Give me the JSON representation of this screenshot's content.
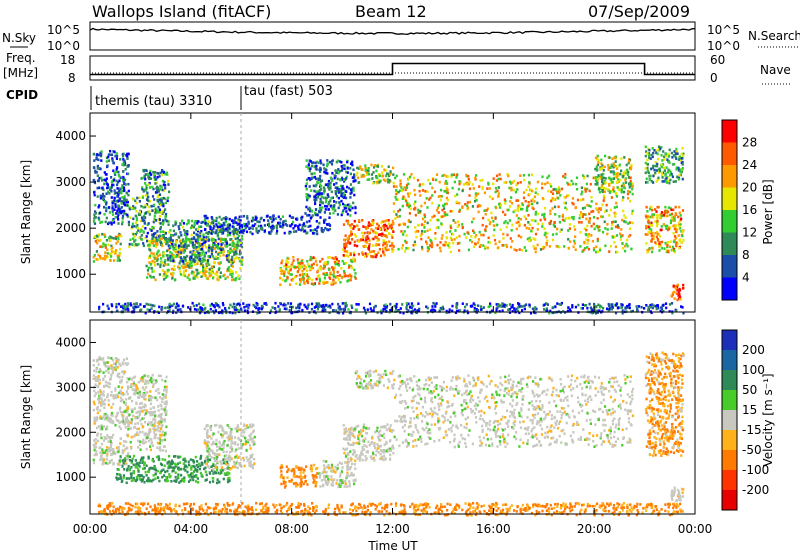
{
  "header": {
    "site": "Wallops Island (fitACF)",
    "beam": "Beam 12",
    "date": "07/Sep/2009"
  },
  "panel_labels": {
    "nsky": "N.Sky",
    "nsearch": "N.Search",
    "freq_line1": "Freq.",
    "freq_line2": "[MHz]",
    "nave": "Nave",
    "cpid": "CPID"
  },
  "cpid_segments": [
    "themis (tau) 3310",
    "tau (fast) 503"
  ],
  "colors": {
    "power": [
      "#0000ff",
      "#1a4ea8",
      "#2e8b57",
      "#32cd32",
      "#e6e600",
      "#ff9900",
      "#ff5a00",
      "#ff0000"
    ],
    "velocity": [
      "#1c2fb8",
      "#1a66a3",
      "#2e8b57",
      "#48cc2a",
      "#c8c8c0",
      "#ffb21a",
      "#ff7a00",
      "#ff3300",
      "#e60000"
    ]
  },
  "chart_data": [
    {
      "type": "line",
      "name": "noise-panel",
      "ylabel_left": "N.Sky",
      "ylabel_right": "N.Search",
      "yticks_left": [
        "10^5",
        "10^0"
      ],
      "yticks_right": [
        "10^5",
        "10^0"
      ],
      "xlim": [
        0,
        24
      ]
    },
    {
      "type": "line",
      "name": "frequency-panel",
      "ylabel_left": "Freq. [MHz]",
      "ylabel_right": "Nave",
      "yticks_left": [
        18,
        8
      ],
      "yticks_right": [
        60,
        0
      ],
      "ylim_left": [
        8,
        18
      ],
      "ylim_right": [
        0,
        60
      ],
      "freq_mhz": [
        {
          "start": 0.0,
          "end": 12.0,
          "value": 10.5
        },
        {
          "start": 12.0,
          "end": 22.0,
          "value": 15.5
        },
        {
          "start": 22.0,
          "end": 24.0,
          "value": 10.5
        }
      ]
    },
    {
      "type": "heatmap",
      "name": "power-panel",
      "ylabel": "Slant Range [km]",
      "ylim": [
        180,
        4500
      ],
      "yticks": [
        1000,
        2000,
        3000,
        4000
      ],
      "xlim": [
        0,
        24
      ],
      "colorbar": {
        "label": "Power [dB]",
        "ticks": [
          4,
          8,
          12,
          16,
          20,
          24,
          28
        ]
      },
      "features": [
        {
          "t0": 0.1,
          "t1": 1.2,
          "r0": 1300,
          "r1": 1900,
          "level": 0.55
        },
        {
          "t0": 0.1,
          "t1": 1.5,
          "r0": 2100,
          "r1": 3700,
          "level": 0.2
        },
        {
          "t0": 1.5,
          "t1": 3.0,
          "r0": 1600,
          "r1": 2700,
          "level": 0.35
        },
        {
          "t0": 2.0,
          "t1": 3.1,
          "r0": 2600,
          "r1": 3300,
          "level": 0.3
        },
        {
          "t0": 2.2,
          "t1": 6.0,
          "r0": 900,
          "r1": 1800,
          "level": 0.5
        },
        {
          "t0": 3.0,
          "t1": 6.0,
          "r0": 1300,
          "r1": 2200,
          "level": 0.3
        },
        {
          "t0": 4.5,
          "t1": 9.5,
          "r0": 1900,
          "r1": 2300,
          "level": 0.15
        },
        {
          "t0": 7.5,
          "t1": 10.5,
          "r0": 800,
          "r1": 1400,
          "level": 0.65
        },
        {
          "t0": 8.5,
          "t1": 10.5,
          "r0": 2300,
          "r1": 3500,
          "level": 0.25
        },
        {
          "t0": 10.0,
          "t1": 12.0,
          "r0": 1400,
          "r1": 2200,
          "level": 0.75
        },
        {
          "t0": 10.5,
          "t1": 12.0,
          "r0": 3000,
          "r1": 3400,
          "level": 0.5
        },
        {
          "t0": 12.0,
          "t1": 21.5,
          "r0": 1500,
          "r1": 3200,
          "level": 0.6
        },
        {
          "t0": 20.0,
          "t1": 21.5,
          "r0": 2800,
          "r1": 3600,
          "level": 0.5
        },
        {
          "t0": 22.0,
          "t1": 23.5,
          "r0": 1500,
          "r1": 2500,
          "level": 0.65
        },
        {
          "t0": 22.0,
          "t1": 23.5,
          "r0": 3000,
          "r1": 3800,
          "level": 0.35
        },
        {
          "t0": 23.0,
          "t1": 23.5,
          "r0": 450,
          "r1": 800,
          "level": 0.9
        },
        {
          "t0": 0.3,
          "t1": 23.5,
          "r0": 180,
          "r1": 400,
          "level": 0.15
        }
      ]
    },
    {
      "type": "heatmap",
      "name": "velocity-panel",
      "ylabel": "Slant Range [km]",
      "ylim": [
        180,
        4500
      ],
      "yticks": [
        1000,
        2000,
        3000,
        4000
      ],
      "xlim": [
        0,
        24
      ],
      "xticks": [
        "00:00",
        "04:00",
        "08:00",
        "12:00",
        "16:00",
        "20:00",
        "00:00"
      ],
      "xlabel": "Time UT",
      "colorbar": {
        "label": "Velocity [m s⁻¹]",
        "ticks": [
          200,
          100,
          50,
          15,
          -15,
          -50,
          -100,
          -200
        ]
      },
      "features": [
        {
          "t0": 0.1,
          "t1": 1.5,
          "r0": 1300,
          "r1": 2000,
          "vel": 0
        },
        {
          "t0": 0.1,
          "t1": 1.5,
          "r0": 2100,
          "r1": 3700,
          "vel": 0
        },
        {
          "t0": 1.5,
          "t1": 3.0,
          "r0": 1600,
          "r1": 3300,
          "vel": 0
        },
        {
          "t0": 1.0,
          "t1": 5.5,
          "r0": 900,
          "r1": 1500,
          "vel": 40
        },
        {
          "t0": 4.5,
          "t1": 6.5,
          "r0": 1200,
          "r1": 2200,
          "vel": 0
        },
        {
          "t0": 7.5,
          "t1": 9.0,
          "r0": 800,
          "r1": 1300,
          "vel": -40
        },
        {
          "t0": 9.0,
          "t1": 10.5,
          "r0": 800,
          "r1": 1400,
          "vel": 0
        },
        {
          "t0": 10.0,
          "t1": 12.0,
          "r0": 1400,
          "r1": 2200,
          "vel": 0
        },
        {
          "t0": 10.5,
          "t1": 12.0,
          "r0": 3000,
          "r1": 3400,
          "vel": 0
        },
        {
          "t0": 12.0,
          "t1": 21.5,
          "r0": 1700,
          "r1": 3300,
          "vel": 0
        },
        {
          "t0": 22.0,
          "t1": 23.5,
          "r0": 1500,
          "r1": 3800,
          "vel": -30
        },
        {
          "t0": 23.0,
          "t1": 23.5,
          "r0": 500,
          "r1": 800,
          "vel": 0
        },
        {
          "t0": 0.3,
          "t1": 23.5,
          "r0": 180,
          "r1": 450,
          "vel": -40
        }
      ]
    }
  ]
}
